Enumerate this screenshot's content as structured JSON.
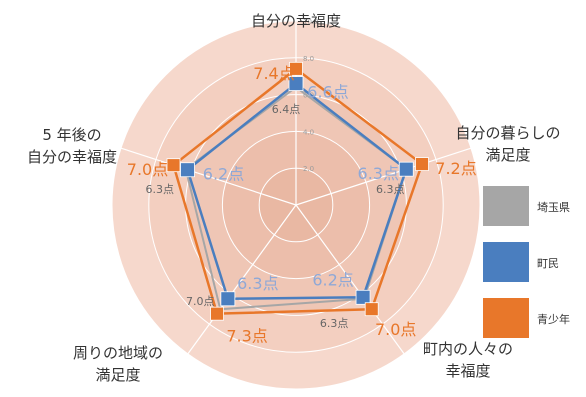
{
  "chart_data": {
    "type": "radar",
    "rmax": 10.0,
    "tick_labels": [
      "2.0",
      "4.0",
      "6.0",
      "8.0",
      "10.0"
    ],
    "axes": [
      {
        "label_lines": [
          "自分の幸福度"
        ]
      },
      {
        "label_lines": [
          "自分の暮らしの",
          "満足度"
        ]
      },
      {
        "label_lines": [
          "町内の人々の",
          "幸福度"
        ]
      },
      {
        "label_lines": [
          "周りの地域の",
          "満足度"
        ]
      },
      {
        "label_lines": [
          "5 年後の",
          "自分の幸福度"
        ]
      }
    ],
    "series": [
      {
        "name": "埼玉県",
        "color": "#a6a6a6",
        "values": [
          6.4,
          6.3,
          6.3,
          7.0,
          6.3
        ],
        "value_labels": [
          "6.4点",
          "6.3点",
          "6.3点",
          "7.0点",
          "6.3点"
        ]
      },
      {
        "name": "町民",
        "color": "#4a7ebf",
        "values": [
          6.6,
          6.3,
          6.2,
          6.3,
          6.2
        ],
        "value_labels": [
          "6.6点",
          "6.3点",
          "6.2点",
          "6.3点",
          "6.2点"
        ]
      },
      {
        "name": "青少年",
        "color": "#e8772a",
        "values": [
          7.4,
          7.2,
          7.0,
          7.3,
          7.0
        ],
        "value_labels": [
          "7.4点",
          "7.2点",
          "7.0点",
          "7.3点",
          "7.0点"
        ]
      }
    ],
    "legend_position": "right"
  }
}
